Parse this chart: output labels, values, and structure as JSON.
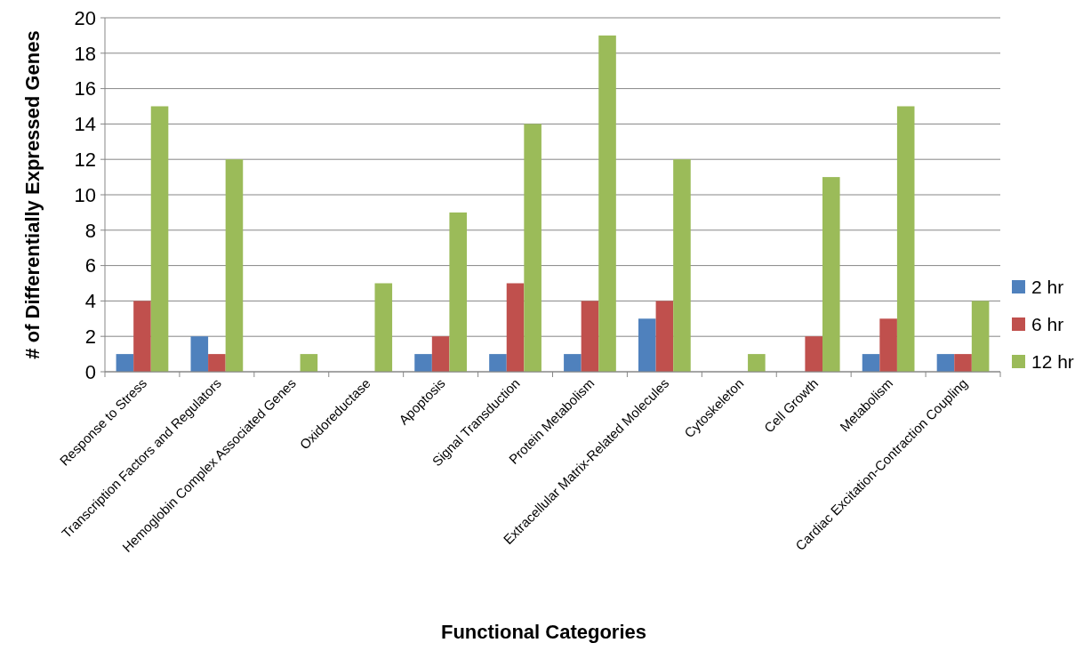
{
  "chart_data": {
    "type": "bar",
    "xlabel": "Functional Categories",
    "ylabel": "# of  Differentially Expressed Genes",
    "categories": [
      "Response to Stress",
      "Transcription Factors and Regulators",
      "Hemoglobin Complex Associated Genes",
      "Oxidoreductase",
      "Apoptosis",
      "Signal Transduction",
      "Protein Metabolism",
      "Extracellular Matrix-Related Molecules",
      "Cytoskeleton",
      "Cell Growth",
      "Metabolism",
      "Cardiac Excitation-Contraction Coupling"
    ],
    "series": [
      {
        "name": "2 hr",
        "color": "#4f81bd",
        "values": [
          1,
          2,
          0,
          0,
          1,
          1,
          1,
          3,
          0,
          0,
          1,
          1
        ]
      },
      {
        "name": "6 hr",
        "color": "#c0504d",
        "values": [
          4,
          1,
          0,
          0,
          2,
          5,
          4,
          4,
          0,
          2,
          3,
          1
        ]
      },
      {
        "name": "12 hr",
        "color": "#9bbb59",
        "values": [
          15,
          12,
          1,
          5,
          9,
          14,
          19,
          12,
          1,
          11,
          15,
          4
        ]
      }
    ],
    "ylim": [
      0,
      20
    ],
    "yticks": [
      0,
      2,
      4,
      6,
      8,
      10,
      12,
      14,
      16,
      18,
      20
    ],
    "grid": "y",
    "legend": "right"
  }
}
